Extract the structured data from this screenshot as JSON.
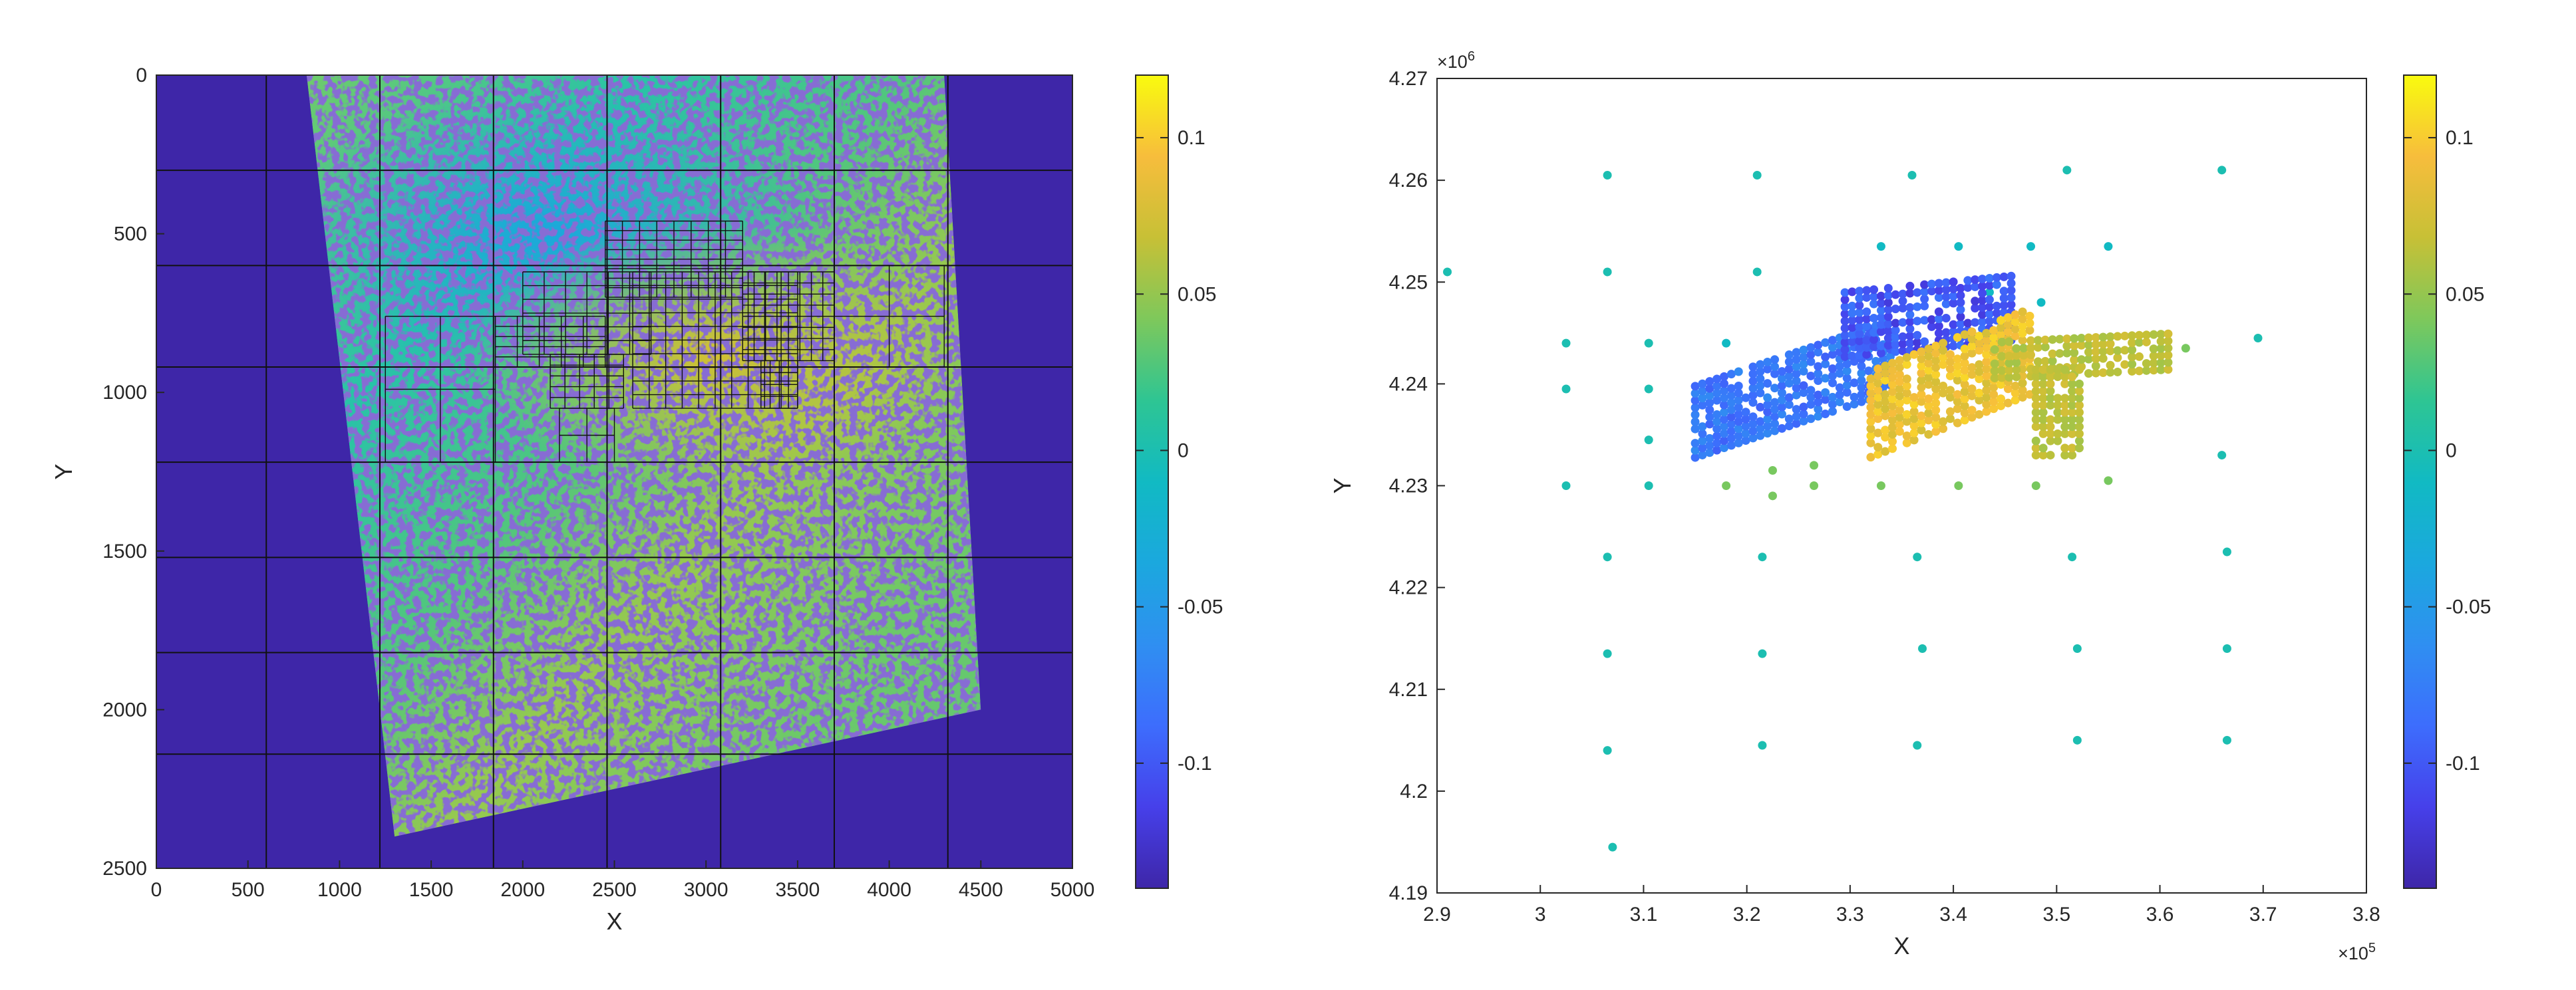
{
  "chart_data": [
    {
      "type": "heatmap",
      "title": "",
      "xlabel": "X",
      "ylabel": "Y",
      "xlim": [
        0,
        5000
      ],
      "ylim": [
        2500,
        0
      ],
      "y_reversed": true,
      "xticks": [
        "0",
        "500",
        "1000",
        "1500",
        "2000",
        "2500",
        "3000",
        "3500",
        "4000",
        "4500",
        "5000"
      ],
      "yticks": [
        "0",
        "500",
        "1000",
        "1500",
        "2000",
        "2500"
      ],
      "colormap": "parula",
      "color_range": [
        -0.14,
        0.12
      ],
      "colorbar_ticks": [
        "0.1",
        "0.05",
        "0",
        "-0.05",
        "-0.1"
      ],
      "background_color": "#3e26a8",
      "swath_corners": [
        [
          820,
          0
        ],
        [
          4300,
          0
        ],
        [
          4500,
          2000
        ],
        [
          1300,
          2400
        ]
      ],
      "coarse_grid": {
        "x_lines": [
          600,
          1220,
          1840,
          2460,
          3080,
          3700,
          4320
        ],
        "y_lines": [
          300,
          600,
          920,
          1220,
          1520,
          1820,
          2140
        ]
      },
      "refined_region_x": [
        1200,
        4300
      ],
      "refined_region_y": [
        450,
        1200
      ]
    },
    {
      "type": "scatter",
      "title": "",
      "xlabel": "X",
      "ylabel": "Y",
      "xlim": [
        290000,
        380000
      ],
      "ylim": [
        4190000,
        4270000
      ],
      "xticks": [
        "2.9",
        "3",
        "3.1",
        "3.2",
        "3.3",
        "3.4",
        "3.5",
        "3.6",
        "3.7",
        "3.8"
      ],
      "yticks": [
        "4.19",
        "4.2",
        "4.21",
        "4.22",
        "4.23",
        "4.24",
        "4.25",
        "4.26",
        "4.27"
      ],
      "x_exponent": "×10",
      "x_exponent_power": "5",
      "y_exponent": "×10",
      "y_exponent_power": "6",
      "colormap": "parula",
      "color_range": [
        -0.14,
        0.12
      ],
      "colorbar_ticks": [
        "0.1",
        "0.05",
        "0",
        "-0.05",
        "-0.1"
      ],
      "points": [
        [
          291000,
          4251000,
          0.0
        ],
        [
          306500,
          4260500,
          0.0
        ],
        [
          321000,
          4260500,
          0.0
        ],
        [
          336000,
          4260500,
          0.0
        ],
        [
          351000,
          4261000,
          0.0
        ],
        [
          366000,
          4261000,
          0.0
        ],
        [
          306500,
          4251000,
          0.0
        ],
        [
          321000,
          4251000,
          0.0
        ],
        [
          302500,
          4244000,
          0.0
        ],
        [
          310500,
          4244000,
          0.0
        ],
        [
          302500,
          4239500,
          0.0
        ],
        [
          310500,
          4239500,
          0.0
        ],
        [
          310500,
          4234500,
          0.0
        ],
        [
          302500,
          4230000,
          0.0
        ],
        [
          310500,
          4230000,
          0.0
        ],
        [
          306500,
          4223000,
          0.0
        ],
        [
          306500,
          4213500,
          0.0
        ],
        [
          306500,
          4204000,
          0.0
        ],
        [
          307000,
          4194500,
          0.0
        ],
        [
          321500,
          4223000,
          0.0
        ],
        [
          321500,
          4213500,
          0.0
        ],
        [
          321500,
          4204500,
          0.0
        ],
        [
          336500,
          4223000,
          0.0
        ],
        [
          337000,
          4214000,
          0.0
        ],
        [
          336500,
          4204500,
          0.0
        ],
        [
          351500,
          4223000,
          0.0
        ],
        [
          352000,
          4214000,
          0.0
        ],
        [
          352000,
          4205000,
          0.0
        ],
        [
          366500,
          4223500,
          0.0
        ],
        [
          366500,
          4214000,
          0.0
        ],
        [
          366500,
          4205000,
          0.0
        ],
        [
          366000,
          4233000,
          0.0
        ],
        [
          369500,
          4244500,
          0.0
        ],
        [
          318000,
          4244000,
          -0.01
        ],
        [
          333000,
          4253500,
          -0.01
        ],
        [
          340500,
          4253500,
          -0.01
        ],
        [
          347500,
          4253500,
          -0.01
        ],
        [
          355000,
          4253500,
          -0.01
        ],
        [
          343500,
          4249000,
          -0.01
        ],
        [
          348500,
          4248000,
          -0.01
        ],
        [
          318000,
          4230000,
          0.04
        ],
        [
          322500,
          4229000,
          0.04
        ],
        [
          326500,
          4230000,
          0.04
        ],
        [
          333000,
          4230000,
          0.04
        ],
        [
          340500,
          4230000,
          0.04
        ],
        [
          348000,
          4230000,
          0.04
        ],
        [
          355000,
          4230500,
          0.04
        ],
        [
          326500,
          4232000,
          0.04
        ],
        [
          322500,
          4231500,
          0.04
        ],
        [
          362500,
          4243500,
          0.04
        ]
      ],
      "clusters": [
        {
          "x_min": 315000,
          "x_max": 334000,
          "y_top": 4243000,
          "y_bottom": 4236000,
          "slope": 0.34,
          "value": -0.08,
          "step": 700,
          "spread": 0.015
        },
        {
          "x_min": 329500,
          "x_max": 346000,
          "y_top": 4250000,
          "y_bottom": 4243500,
          "slope": 0.1,
          "value": -0.1,
          "step": 700,
          "spread": 0.02
        },
        {
          "x_min": 332000,
          "x_max": 348000,
          "y_top": 4244500,
          "y_bottom": 4236000,
          "slope": 0.4,
          "value": 0.09,
          "step": 700,
          "spread": 0.015
        },
        {
          "x_min": 344000,
          "x_max": 361000,
          "y_top": 4245000,
          "y_bottom": 4241000,
          "slope": 0.05,
          "value": 0.065,
          "step": 700,
          "spread": 0.01
        },
        {
          "x_min": 348000,
          "x_max": 352500,
          "y_top": 4242000,
          "y_bottom": 4233000,
          "slope": 0.0,
          "value": 0.065,
          "step": 700,
          "spread": 0.01
        }
      ]
    }
  ]
}
